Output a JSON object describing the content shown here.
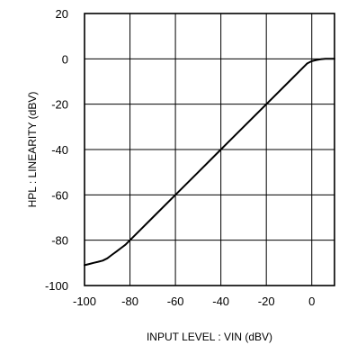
{
  "chart_data": {
    "type": "line",
    "title": "",
    "xlabel": "INPUT LEVEL : VIN (dBV)",
    "ylabel": "HPL : LINEARITY (dBV)",
    "xlim": [
      -100,
      10
    ],
    "ylim": [
      -100,
      20
    ],
    "x_ticks": [
      -100,
      -80,
      -60,
      -40,
      -20,
      0
    ],
    "y_ticks": [
      20,
      0,
      -20,
      -40,
      -60,
      -80,
      -100
    ],
    "x_tick_labels": [
      "-100",
      "-80",
      "-60",
      "-40",
      "-20",
      "0"
    ],
    "y_tick_labels": [
      "20",
      "0",
      "-20",
      "-40",
      "-60",
      "-80",
      "-100"
    ],
    "grid": true,
    "legend": "none",
    "series": [
      {
        "x": [
          -100,
          -98,
          -96,
          -94,
          -92,
          -90,
          -88,
          -86,
          -84,
          -82,
          -80,
          -75,
          -70,
          -60,
          -50,
          -40,
          -30,
          -20,
          -10,
          -4,
          -2,
          0,
          2,
          4,
          6,
          8,
          10
        ],
        "y": [
          -91,
          -90.5,
          -90,
          -89.5,
          -89,
          -88,
          -86.5,
          -85,
          -83.5,
          -82,
          -80,
          -75,
          -70,
          -60,
          -50,
          -40,
          -30,
          -20,
          -10,
          -4,
          -2,
          -1,
          -0.5,
          -0.2,
          0,
          0,
          0
        ]
      }
    ]
  }
}
